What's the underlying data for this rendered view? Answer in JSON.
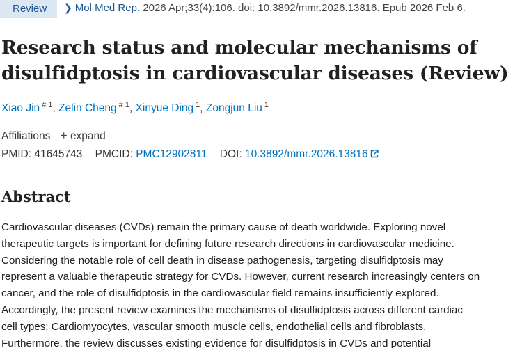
{
  "header": {
    "pubtype_label": "Review",
    "journal_name": "Mol Med Rep.",
    "citation": " 2026 Apr;33(4):106. doi: 10.3892/mmr.2026.13816. Epub 2026 Feb 6."
  },
  "article": {
    "title": "Research status and molecular mechanisms of disulfidptosis in cardiovascular diseases (Review)"
  },
  "authors": [
    {
      "name": "Xiao Jin",
      "sup": "# 1"
    },
    {
      "name": "Zelin Cheng",
      "sup": "# 1"
    },
    {
      "name": "Xinyue Ding",
      "sup": "1"
    },
    {
      "name": "Zongjun Liu",
      "sup": "1"
    }
  ],
  "affiliations": {
    "label": "Affiliations",
    "toggle_icon": "+",
    "toggle_label": "expand"
  },
  "identifiers": {
    "pmid_label": "PMID:",
    "pmid": "41645743",
    "pmcid_label": "PMCID:",
    "pmcid": "PMC12902811",
    "doi_label": "DOI:",
    "doi": "10.3892/mmr.2026.13816"
  },
  "abstract": {
    "heading": "Abstract",
    "lines": [
      "Cardiovascular diseases (CVDs) remain the primary cause of death worldwide. Exploring novel",
      "therapeutic targets is important for defining future research directions in cardiovascular medicine.",
      "Considering the notable role of cell death in disease pathogenesis, targeting disulfidptosis may",
      "represent a valuable therapeutic strategy for CVDs. However, current research increasingly centers on",
      "cancer, and the role of disulfidptosis in the cardiovascular field remains insufficiently explored.",
      "Accordingly, the present review examines the mechanisms of disulfidptosis across different cardiac",
      "cell types: Cardiomyocytes, vascular smooth muscle cells, endothelial cells and fibroblasts.",
      "Furthermore, the review discusses existing evidence for disulfidptosis in CVDs and potential"
    ]
  },
  "colors": {
    "link": "#0071bc",
    "pubtype_bg": "#dce8f1",
    "text": "#212121"
  }
}
